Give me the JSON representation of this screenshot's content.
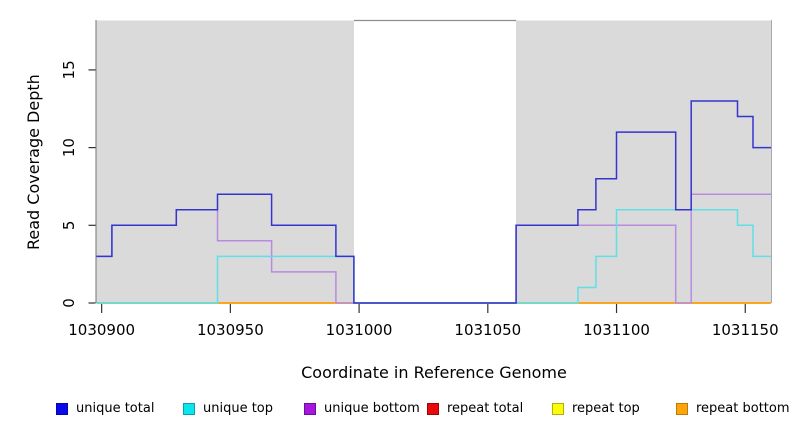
{
  "figure": {
    "xlabel": "Coordinate in Reference Genome",
    "ylabel": "Read Coverage Depth"
  },
  "legend": {
    "entries": [
      {
        "label": "unique total",
        "color": "#0909EC",
        "border": "#0606AE"
      },
      {
        "label": "unique top",
        "color": "#0AE6EE",
        "border": "#0C9FAC"
      },
      {
        "label": "unique bottom",
        "color": "#A517DE",
        "border": "#6D0F95"
      },
      {
        "label": "repeat total",
        "color": "#E80A0A",
        "border": "#9C0606"
      },
      {
        "label": "repeat top",
        "color": "#FBFB0A",
        "border": "#B0B008"
      },
      {
        "label": "repeat bottom",
        "color": "#FFA40A",
        "border": "#BA7A06"
      }
    ]
  },
  "chart_data": {
    "type": "line",
    "subtype": "step-coverage",
    "title": "",
    "xlabel": "Coordinate in Reference Genome",
    "ylabel": "Read Coverage Depth",
    "xlim": [
      1030898,
      1031160
    ],
    "ylim": [
      0,
      18.2
    ],
    "x_ticks": [
      1030900,
      1030950,
      1031000,
      1031050,
      1031100,
      1031150
    ],
    "y_ticks": [
      0,
      5,
      10,
      15
    ],
    "grid": false,
    "legend_position": "bottom",
    "panel_bg": "#DADADA",
    "gap_region": {
      "from": 1030998,
      "to": 1031061,
      "color": "#FFFFFF"
    },
    "shaded_regions": [
      {
        "from": 1030898,
        "to": 1030998
      },
      {
        "from": 1031061,
        "to": 1031160
      }
    ],
    "border_colors": {
      "top_gap": "#8E8E8E",
      "left": "#757575",
      "right": "#A9A9A9",
      "tick": "#333333"
    },
    "series": [
      {
        "name": "repeat total",
        "line_color": "#E03535",
        "steps": [
          [
            1030898,
            0
          ],
          [
            1031160,
            0
          ]
        ]
      },
      {
        "name": "repeat top",
        "line_color": "#EDED55",
        "steps": [
          [
            1030898,
            0
          ],
          [
            1031160,
            0
          ]
        ]
      },
      {
        "name": "repeat bottom",
        "line_color": "#FF9D05",
        "steps": [
          [
            1030898,
            0
          ],
          [
            1031160,
            0
          ]
        ]
      },
      {
        "name": "unique bottom",
        "line_color": "#B88BDE",
        "steps": [
          [
            1030898,
            3
          ],
          [
            1030904,
            5
          ],
          [
            1030929,
            6
          ],
          [
            1030945,
            4
          ],
          [
            1030966,
            2
          ],
          [
            1030991,
            0
          ],
          [
            1031061,
            5
          ],
          [
            1031123,
            0
          ],
          [
            1031129,
            7
          ],
          [
            1031160,
            7
          ]
        ]
      },
      {
        "name": "unique top",
        "line_color": "#5FE0E6",
        "steps": [
          [
            1030898,
            0
          ],
          [
            1030945,
            3
          ],
          [
            1030998,
            0
          ],
          [
            1031085,
            1
          ],
          [
            1031092,
            3
          ],
          [
            1031100,
            6
          ],
          [
            1031147,
            5
          ],
          [
            1031153,
            3
          ],
          [
            1031160,
            3
          ]
        ]
      },
      {
        "name": "unique total",
        "line_color": "#3434CF",
        "steps": [
          [
            1030898,
            3
          ],
          [
            1030904,
            5
          ],
          [
            1030929,
            6
          ],
          [
            1030945,
            7
          ],
          [
            1030966,
            5
          ],
          [
            1030991,
            3
          ],
          [
            1030998,
            0
          ],
          [
            1031061,
            5
          ],
          [
            1031085,
            6
          ],
          [
            1031092,
            8
          ],
          [
            1031100,
            11
          ],
          [
            1031123,
            6
          ],
          [
            1031129,
            13
          ],
          [
            1031147,
            12
          ],
          [
            1031153,
            10
          ],
          [
            1031160,
            10
          ]
        ]
      }
    ],
    "zero_line_overlaps": [
      {
        "from": 1030898,
        "to": 1030945,
        "color": "#87D58F",
        "meaning": "unique top + repeat lines coincide at 0"
      },
      {
        "from": 1031061,
        "to": 1031085,
        "color": "#87D58F",
        "meaning": "unique top + repeat lines coincide at 0"
      }
    ]
  }
}
